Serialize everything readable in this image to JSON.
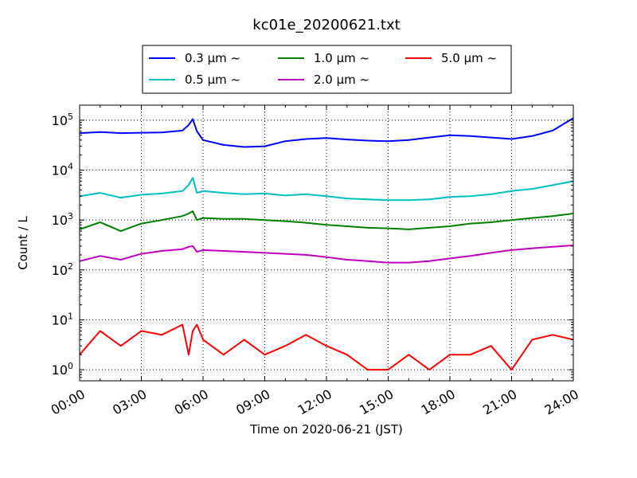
{
  "chart_data": {
    "type": "line",
    "title": "kc01e_20200621.txt",
    "xlabel": "Time on 2020-06-21 (JST)",
    "ylabel": "Count / L",
    "y_scale": "log",
    "xlim": [
      "00:00",
      "24:00"
    ],
    "ylim": [
      0.6,
      200000
    ],
    "grid": true,
    "legend_position": "top-center",
    "x_ticks": [
      "00:00",
      "03:00",
      "06:00",
      "09:00",
      "12:00",
      "15:00",
      "18:00",
      "21:00",
      "24:00"
    ],
    "y_ticks": [
      {
        "value": 1,
        "mantissa": "10",
        "exponent": "0"
      },
      {
        "value": 10,
        "mantissa": "10",
        "exponent": "1"
      },
      {
        "value": 100,
        "mantissa": "10",
        "exponent": "2"
      },
      {
        "value": 1000,
        "mantissa": "10",
        "exponent": "3"
      },
      {
        "value": 10000,
        "mantissa": "10",
        "exponent": "4"
      },
      {
        "value": 100000,
        "mantissa": "10",
        "exponent": "5"
      }
    ],
    "x_hours": [
      0,
      1,
      2,
      3,
      4,
      5,
      5.3,
      5.5,
      5.7,
      6,
      7,
      8,
      9,
      10,
      11,
      12,
      13,
      14,
      15,
      16,
      17,
      18,
      19,
      20,
      21,
      22,
      23,
      24
    ],
    "series": [
      {
        "name": "0.3 μm ~",
        "color": "#0000ff",
        "values": [
          55000,
          58000,
          55000,
          56000,
          57000,
          62000,
          80000,
          105000,
          60000,
          40000,
          32000,
          29000,
          30000,
          38000,
          42000,
          44000,
          41000,
          39000,
          38000,
          40000,
          45000,
          50000,
          48000,
          45000,
          42000,
          48000,
          62000,
          110000
        ]
      },
      {
        "name": "0.5 μm ~",
        "color": "#00bfbf",
        "values": [
          3000,
          3500,
          2800,
          3200,
          3400,
          3800,
          5000,
          7000,
          3500,
          3800,
          3500,
          3300,
          3400,
          3100,
          3300,
          3000,
          2700,
          2600,
          2500,
          2500,
          2600,
          2900,
          3000,
          3300,
          3800,
          4200,
          5000,
          6000
        ]
      },
      {
        "name": "1.0 μm ~",
        "color": "#008000",
        "values": [
          650,
          900,
          600,
          850,
          1000,
          1200,
          1350,
          1500,
          1000,
          1100,
          1050,
          1050,
          1000,
          950,
          880,
          800,
          750,
          700,
          680,
          650,
          700,
          750,
          850,
          900,
          1000,
          1100,
          1200,
          1350
        ]
      },
      {
        "name": "2.0 μm ~",
        "color": "#bf00bf",
        "values": [
          150,
          190,
          160,
          210,
          240,
          260,
          290,
          300,
          230,
          250,
          240,
          230,
          220,
          210,
          200,
          180,
          160,
          150,
          140,
          140,
          150,
          170,
          190,
          220,
          250,
          270,
          290,
          310
        ]
      },
      {
        "name": "5.0 μm ~",
        "color": "#ff0000",
        "values": [
          2,
          6,
          3,
          6,
          5,
          8,
          2,
          6,
          8,
          4,
          2,
          4,
          2,
          3,
          5,
          3,
          2,
          1,
          1,
          2,
          1,
          2,
          2,
          3,
          1,
          4,
          5,
          4
        ]
      }
    ]
  }
}
